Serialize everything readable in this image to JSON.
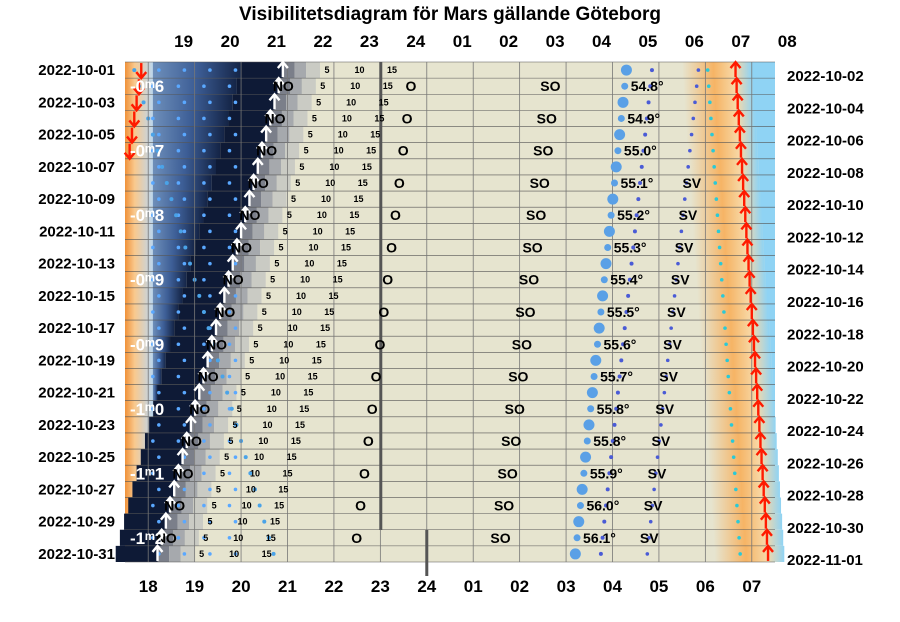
{
  "chart_data": {
    "type": "heatmap",
    "title": "Visibilitetsdiagram för Mars gällande Göteborg",
    "top_hour_labels": [
      "19",
      "20",
      "21",
      "22",
      "23",
      "24",
      "01",
      "02",
      "03",
      "04",
      "05",
      "06",
      "07",
      "08"
    ],
    "bottom_hour_labels": [
      "18",
      "19",
      "20",
      "21",
      "22",
      "23",
      "24",
      "01",
      "02",
      "03",
      "04",
      "05",
      "06",
      "07"
    ],
    "left_dates": [
      "2022-10-01",
      "2022-10-03",
      "2022-10-05",
      "2022-10-07",
      "2022-10-09",
      "2022-10-11",
      "2022-10-13",
      "2022-10-15",
      "2022-10-17",
      "2022-10-19",
      "2022-10-21",
      "2022-10-23",
      "2022-10-25",
      "2022-10-27",
      "2022-10-29",
      "2022-10-31"
    ],
    "right_dates": [
      "2022-10-02",
      "2022-10-04",
      "2022-10-06",
      "2022-10-08",
      "2022-10-10",
      "2022-10-12",
      "2022-10-14",
      "2022-10-16",
      "2022-10-18",
      "2022-10-20",
      "2022-10-22",
      "2022-10-24",
      "2022-10-26",
      "2022-10-28",
      "2022-10-30",
      "2022-11-01"
    ],
    "altitude_markers": [
      "5",
      "10",
      "15"
    ],
    "directions": {
      "northeast": "NO",
      "east": "O",
      "southeast": "SO",
      "southwest": "SV"
    },
    "max_altitudes": [
      {
        "day": 2,
        "label": "54.8°"
      },
      {
        "day": 4,
        "label": "54.9°"
      },
      {
        "day": 6,
        "label": "55.0°"
      },
      {
        "day": 8,
        "label": "55.1°"
      },
      {
        "day": 10,
        "label": "55.2°"
      },
      {
        "day": 12,
        "label": "55.3°"
      },
      {
        "day": 14,
        "label": "55.4°"
      },
      {
        "day": 16,
        "label": "55.5°"
      },
      {
        "day": 18,
        "label": "55.6°"
      },
      {
        "day": 20,
        "label": "55.7°"
      },
      {
        "day": 22,
        "label": "55.8°"
      },
      {
        "day": 24,
        "label": "55.8°"
      },
      {
        "day": 26,
        "label": "55.9°"
      },
      {
        "day": 28,
        "label": "56.0°"
      },
      {
        "day": 30,
        "label": "56.1°"
      }
    ],
    "magnitudes": [
      {
        "day": 2,
        "label": "-0ᵐ6"
      },
      {
        "day": 6,
        "label": "-0ᵐ7"
      },
      {
        "day": 10,
        "label": "-0ᵐ8"
      },
      {
        "day": 14,
        "label": "-0ᵐ9"
      },
      {
        "day": 18,
        "label": "-0ᵐ9"
      },
      {
        "day": 22,
        "label": "-1ᵐ0"
      },
      {
        "day": 26,
        "label": "-1ᵐ1"
      },
      {
        "day": 30,
        "label": "-1ᵐ2"
      }
    ],
    "rise_time_hours": {
      "first_day": 20.9,
      "last_day": 18.2
    },
    "transit_time_hours": {
      "first_day": 28.3,
      "last_day": 27.2
    },
    "moon_rise_time_hours": {
      "first_day": 17.7,
      "last_day": 20.7
    },
    "dawn_time_hours": {
      "first_day": 30.4,
      "last_day": 31.1
    },
    "days": 31
  }
}
